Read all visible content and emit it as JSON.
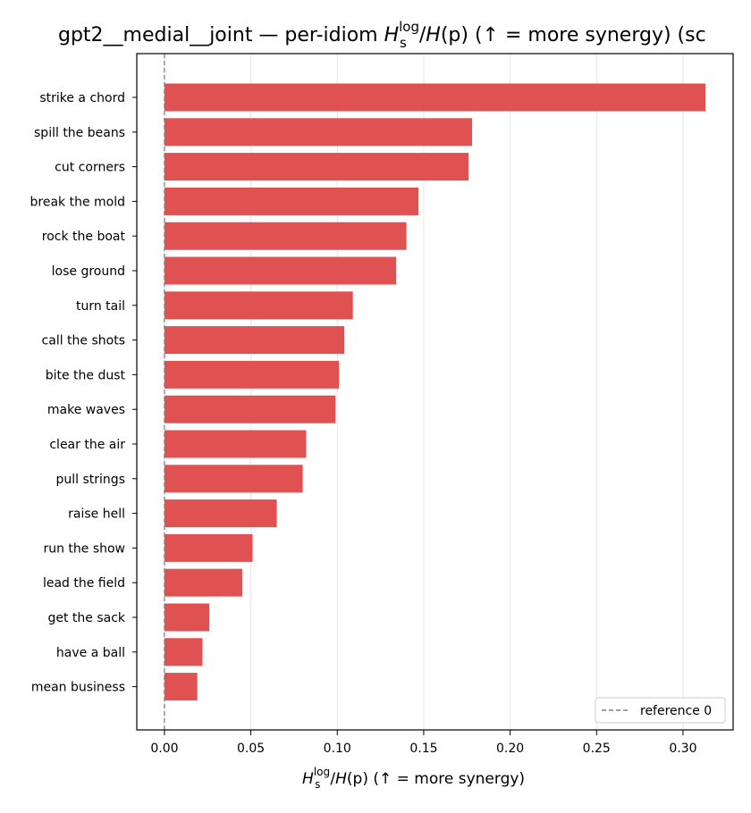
{
  "chart_data": {
    "type": "bar",
    "orientation": "horizontal",
    "title": {
      "main": "gpt2__medial__joint — per-idiom ",
      "h": "H",
      "sub": "s",
      "sup": "log",
      "slash": "/",
      "hp": "H",
      "paren": "(p)",
      "tail": "  (↑ = more synergy) (sc"
    },
    "xlabel": {
      "h": "H",
      "sub": "s",
      "sup": "log",
      "slash": "/",
      "hp": "H",
      "paren": "(p)",
      "tail": "  (↑ = more synergy)"
    },
    "ylabel": "",
    "categories": [
      "strike a chord",
      "spill the beans",
      "cut corners",
      "break the mold",
      "rock the boat",
      "lose ground",
      "turn tail",
      "call the shots",
      "bite the dust",
      "make waves",
      "clear the air",
      "pull strings",
      "raise hell",
      "run the show",
      "lead the field",
      "get the sack",
      "have a ball",
      "mean business"
    ],
    "values": [
      0.313,
      0.178,
      0.176,
      0.147,
      0.14,
      0.134,
      0.109,
      0.104,
      0.101,
      0.099,
      0.082,
      0.08,
      0.065,
      0.051,
      0.045,
      0.026,
      0.022,
      0.019
    ],
    "xlim": [
      -0.016,
      0.329
    ],
    "xticks": [
      0.0,
      0.05,
      0.1,
      0.15,
      0.2,
      0.25,
      0.3
    ],
    "xtick_labels": [
      "0.00",
      "0.05",
      "0.10",
      "0.15",
      "0.20",
      "0.25",
      "0.30"
    ],
    "bar_color": "#e05252",
    "reference_line": {
      "value": 0,
      "label": "reference 0",
      "color": "#808080",
      "style": "dashed"
    },
    "grid": {
      "x": true,
      "y": false,
      "color": "#e6e6e6"
    },
    "legend": {
      "position": "lower-right",
      "entries": [
        "reference 0"
      ]
    }
  }
}
